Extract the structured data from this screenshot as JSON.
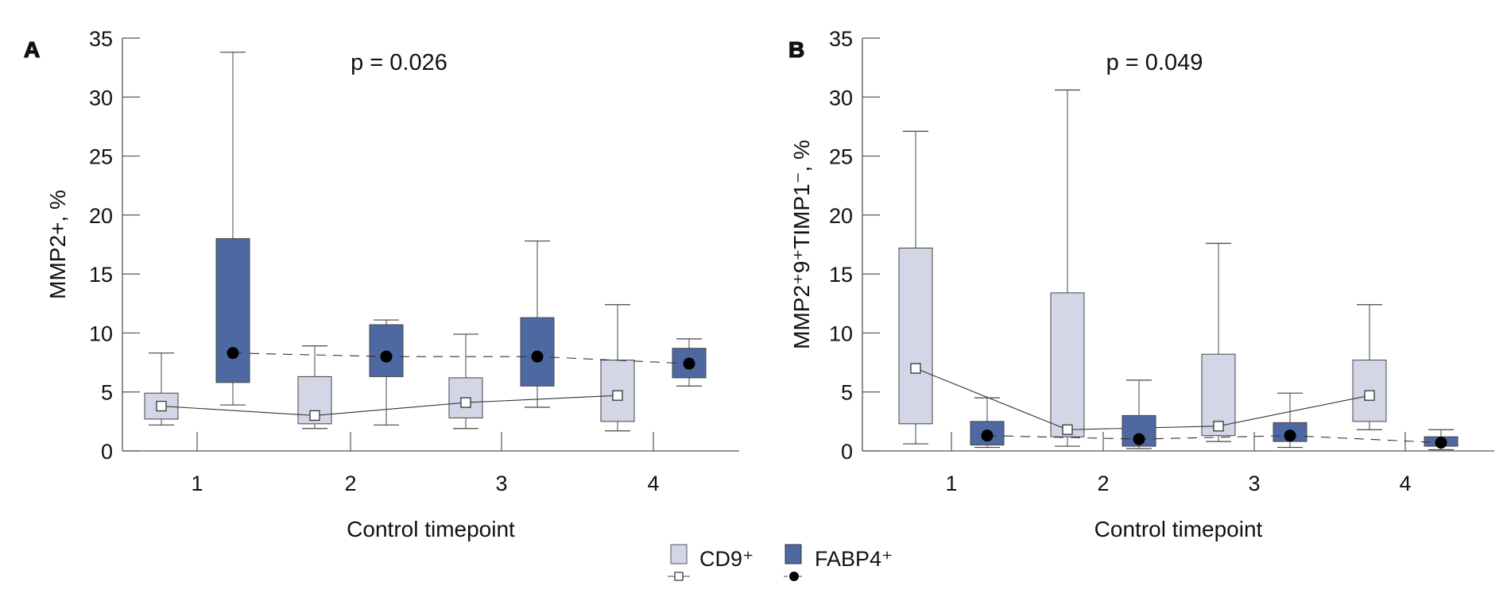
{
  "colors": {
    "cd9": "#d3d6e7",
    "fabp4": "#4e69a2",
    "axis": "#555555"
  },
  "legend": {
    "cd9_label": "CD9⁺",
    "fabp4_label": "FABP4⁺"
  },
  "chart_data": [
    {
      "type": "box",
      "panel_label": "A",
      "annotation": "p = 0.026",
      "xlabel": "Control timepoint",
      "ylabel": "MMP2+, %",
      "categories": [
        "1",
        "2",
        "3",
        "4"
      ],
      "ylim": [
        0,
        35
      ],
      "yticks": [
        0,
        5,
        10,
        15,
        20,
        25,
        30,
        35
      ],
      "series": [
        {
          "name": "CD9⁺",
          "line": "solid",
          "boxes": [
            {
              "min": 2.2,
              "q1": 2.7,
              "median": 3.8,
              "q3": 4.9,
              "max": 8.3
            },
            {
              "min": 1.9,
              "q1": 2.3,
              "median": 3.0,
              "q3": 6.3,
              "max": 8.9
            },
            {
              "min": 1.9,
              "q1": 2.8,
              "median": 4.1,
              "q3": 6.2,
              "max": 9.9
            },
            {
              "min": 1.7,
              "q1": 2.5,
              "median": 4.7,
              "q3": 7.7,
              "max": 12.4
            }
          ]
        },
        {
          "name": "FABP4⁺",
          "line": "dashed",
          "boxes": [
            {
              "min": 3.9,
              "q1": 5.8,
              "median": 8.3,
              "q3": 18.0,
              "max": 33.8
            },
            {
              "min": 2.2,
              "q1": 6.3,
              "median": 8.0,
              "q3": 10.7,
              "max": 11.1
            },
            {
              "min": 3.7,
              "q1": 5.5,
              "median": 8.0,
              "q3": 11.3,
              "max": 17.8
            },
            {
              "min": 5.5,
              "q1": 6.2,
              "median": 7.4,
              "q3": 8.7,
              "max": 9.5
            }
          ]
        }
      ]
    },
    {
      "type": "box",
      "panel_label": "B",
      "annotation": "p = 0.049",
      "xlabel": "Control timepoint",
      "ylabel": "MMP2⁺9⁺TIMP1⁻, %",
      "categories": [
        "1",
        "2",
        "3",
        "4"
      ],
      "ylim": [
        0,
        35
      ],
      "yticks": [
        0,
        5,
        10,
        15,
        20,
        25,
        30,
        35
      ],
      "series": [
        {
          "name": "CD9⁺",
          "line": "solid",
          "boxes": [
            {
              "min": 0.6,
              "q1": 2.3,
              "median": 7.0,
              "q3": 17.2,
              "max": 27.1
            },
            {
              "min": 0.4,
              "q1": 1.2,
              "median": 1.8,
              "q3": 13.4,
              "max": 30.6
            },
            {
              "min": 0.8,
              "q1": 1.3,
              "median": 2.1,
              "q3": 8.2,
              "max": 17.6
            },
            {
              "min": 1.8,
              "q1": 2.5,
              "median": 4.7,
              "q3": 7.7,
              "max": 12.4
            }
          ]
        },
        {
          "name": "FABP4⁺",
          "line": "dashed",
          "boxes": [
            {
              "min": 0.3,
              "q1": 0.5,
              "median": 1.3,
              "q3": 2.5,
              "max": 4.5
            },
            {
              "min": 0.2,
              "q1": 0.4,
              "median": 1.0,
              "q3": 3.0,
              "max": 6.0
            },
            {
              "min": 0.3,
              "q1": 0.8,
              "median": 1.3,
              "q3": 2.4,
              "max": 4.9
            },
            {
              "min": 0.1,
              "q1": 0.4,
              "median": 0.7,
              "q3": 1.2,
              "max": 1.8
            }
          ]
        }
      ]
    }
  ]
}
